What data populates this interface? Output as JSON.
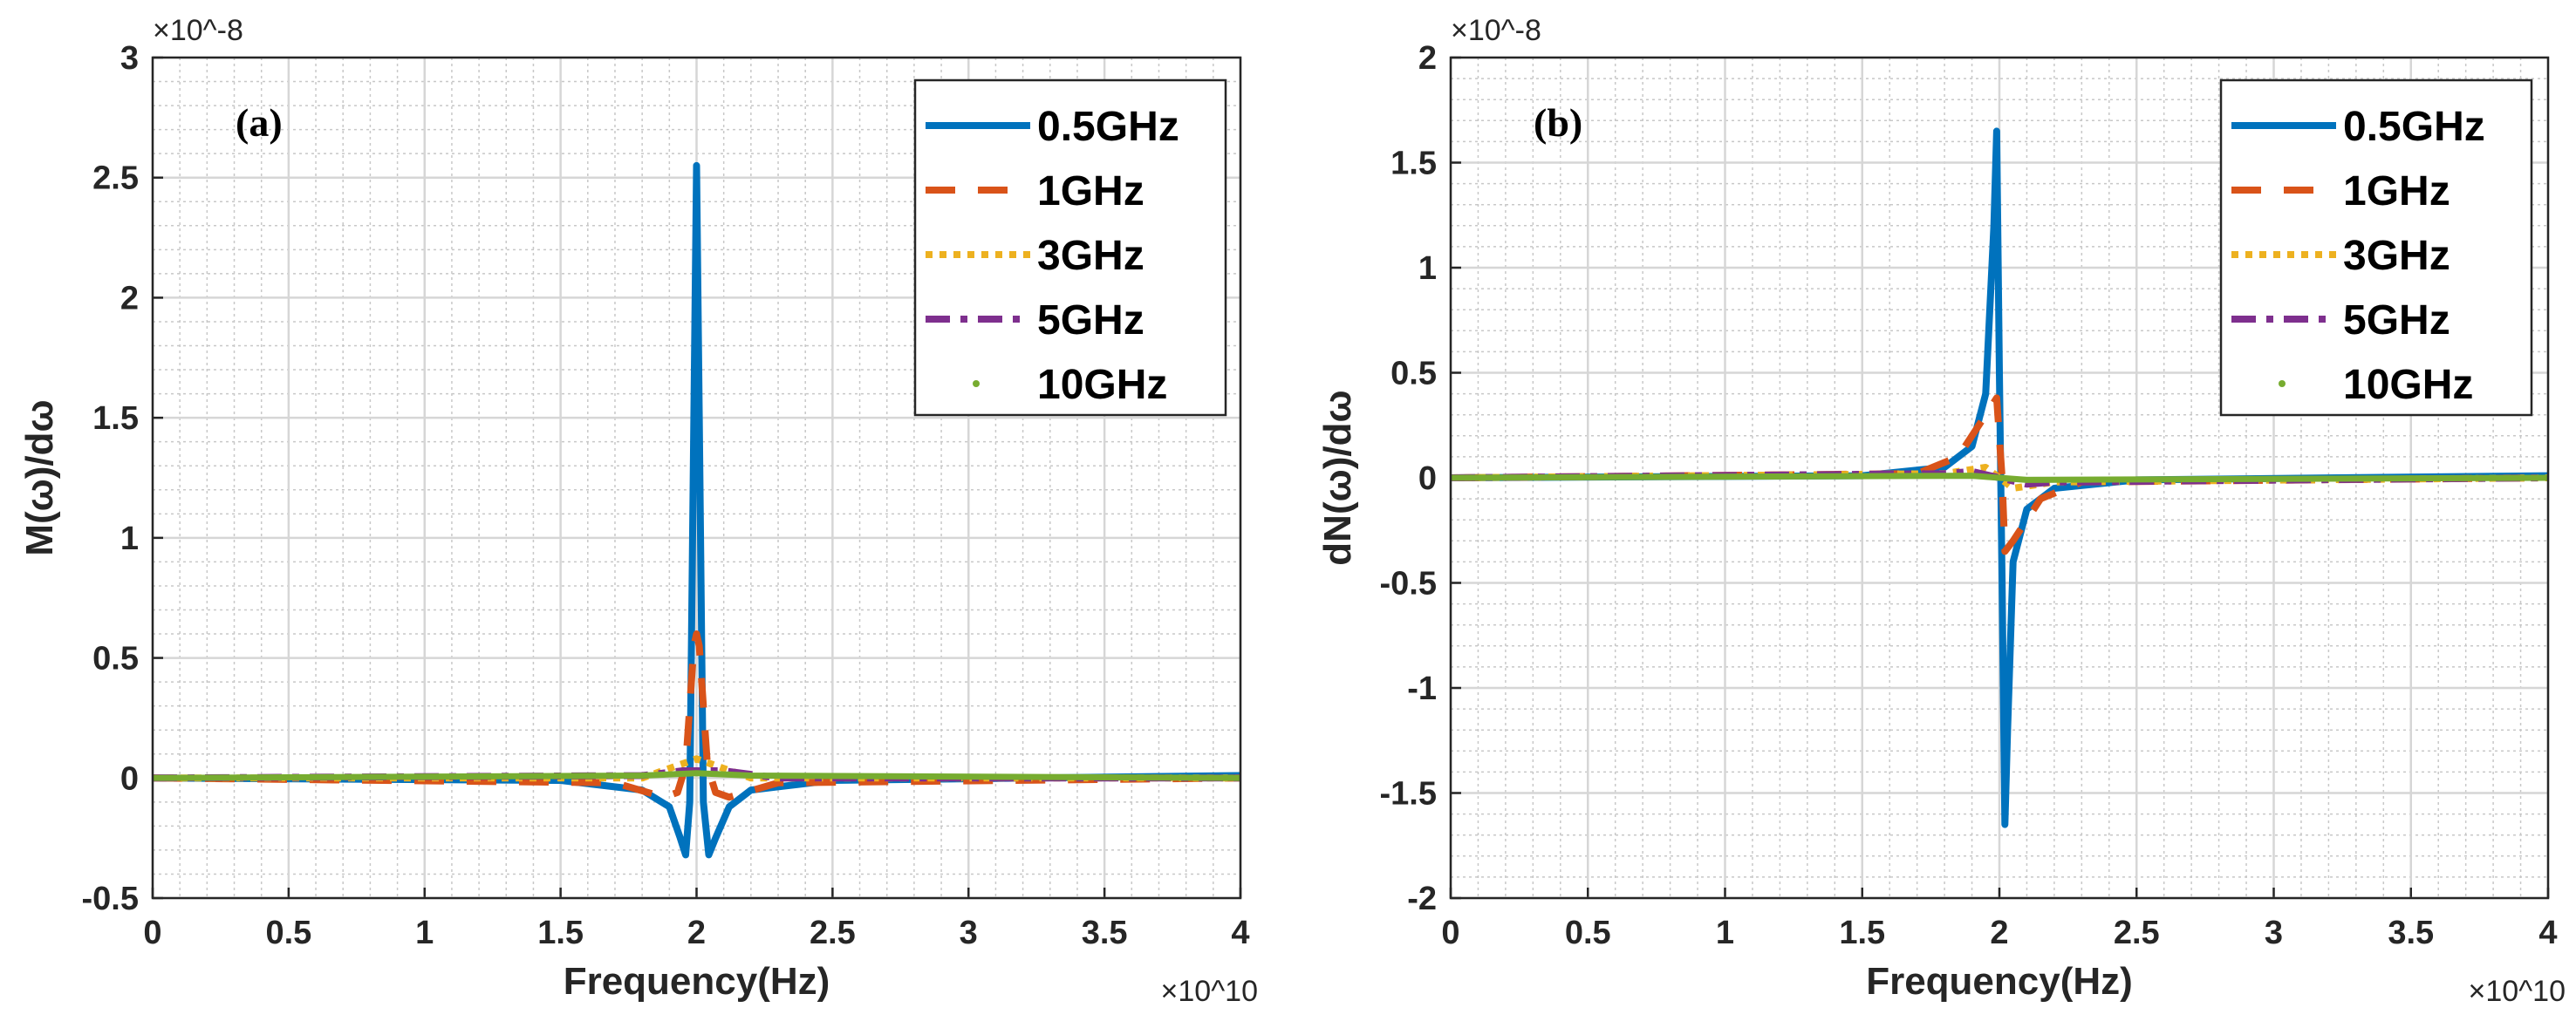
{
  "chart_data": [
    {
      "type": "line",
      "panel_label": "(a)",
      "xlabel": "Frequency(Hz)",
      "ylabel": "M(ω)/dω",
      "x_multiplier": "×10^10",
      "y_multiplier": "×10^-8",
      "xlim": [
        0,
        4
      ],
      "ylim": [
        -0.5,
        3
      ],
      "xticks": [
        0,
        0.5,
        1,
        1.5,
        2,
        2.5,
        3,
        3.5,
        4
      ],
      "xtick_labels": [
        "0",
        "0.5",
        "1",
        "1.5",
        "2",
        "2.5",
        "3",
        "3.5",
        "4"
      ],
      "yticks": [
        -0.5,
        0,
        0.5,
        1,
        1.5,
        2,
        2.5,
        3
      ],
      "ytick_labels": [
        "-0.5",
        "0",
        "0.5",
        "1",
        "1.5",
        "2",
        "2.5",
        "3"
      ],
      "grid": true,
      "minor_grid": true,
      "legend_position": "top-right",
      "series": [
        {
          "name": "0.5GHz",
          "color": "#0072BD",
          "style": "solid",
          "x": [
            0,
            1.5,
            1.8,
            1.9,
            1.94,
            1.96,
            1.975,
            1.99,
            2.0,
            2.01,
            2.025,
            2.045,
            2.07,
            2.12,
            2.2,
            2.5,
            4
          ],
          "y": [
            0,
            -0.01,
            -0.05,
            -0.12,
            -0.25,
            -0.32,
            -0.1,
            1.5,
            2.55,
            1.5,
            -0.1,
            -0.32,
            -0.25,
            -0.12,
            -0.05,
            -0.01,
            0.01
          ]
        },
        {
          "name": "1GHz",
          "color": "#D95319",
          "style": "dashed",
          "x": [
            0,
            1.7,
            1.88,
            1.93,
            1.96,
            1.99,
            2.0,
            2.01,
            2.04,
            2.07,
            2.12,
            2.3,
            4
          ],
          "y": [
            0,
            -0.02,
            -0.08,
            -0.06,
            0.05,
            0.55,
            0.6,
            0.55,
            0.05,
            -0.06,
            -0.08,
            -0.02,
            0
          ]
        },
        {
          "name": "3GHz",
          "color": "#EDB120",
          "style": "dotted",
          "x": [
            0,
            1.8,
            1.95,
            2.0,
            2.05,
            2.2,
            4
          ],
          "y": [
            0,
            0,
            0.06,
            0.08,
            0.06,
            0,
            0
          ]
        },
        {
          "name": "5GHz",
          "color": "#7E2F8E",
          "style": "dashdot",
          "x": [
            0,
            1.8,
            1.95,
            2.0,
            2.1,
            2.3,
            4
          ],
          "y": [
            0,
            0.01,
            0.03,
            0.03,
            0.03,
            0,
            0
          ]
        },
        {
          "name": "10GHz",
          "color": "#77AC30",
          "style": "points",
          "x": [
            0,
            1.8,
            2.0,
            2.2,
            4
          ],
          "y": [
            0,
            0.01,
            0.02,
            0.01,
            0
          ]
        }
      ]
    },
    {
      "type": "line",
      "panel_label": "(b)",
      "xlabel": "Frequency(Hz)",
      "ylabel": "dN(ω)/dω",
      "x_multiplier": "×10^10",
      "y_multiplier": "×10^-8",
      "xlim": [
        0,
        4
      ],
      "ylim": [
        -2,
        2
      ],
      "xticks": [
        0,
        0.5,
        1,
        1.5,
        2,
        2.5,
        3,
        3.5,
        4
      ],
      "xtick_labels": [
        "0",
        "0.5",
        "1",
        "1.5",
        "2",
        "2.5",
        "3",
        "3.5",
        "4"
      ],
      "yticks": [
        -2,
        -1.5,
        -1,
        -0.5,
        0,
        0.5,
        1,
        1.5,
        2
      ],
      "ytick_labels": [
        "-2",
        "-1.5",
        "-1",
        "-0.5",
        "0",
        "0.5",
        "1",
        "1.5",
        "2"
      ],
      "grid": true,
      "minor_grid": true,
      "legend_position": "top-right",
      "series": [
        {
          "name": "0.5GHz",
          "color": "#0072BD",
          "style": "solid",
          "x": [
            0,
            1.5,
            1.8,
            1.9,
            1.95,
            1.98,
            1.99,
            2.0,
            2.01,
            2.02,
            2.03,
            2.05,
            2.1,
            2.2,
            2.5,
            4
          ],
          "y": [
            0,
            0.01,
            0.05,
            0.15,
            0.4,
            1.2,
            1.65,
            0.5,
            -0.5,
            -1.65,
            -1.2,
            -0.4,
            -0.15,
            -0.05,
            -0.01,
            0.01
          ]
        },
        {
          "name": "1GHz",
          "color": "#D95319",
          "style": "dashed",
          "x": [
            0,
            1.7,
            1.85,
            1.95,
            1.99,
            2.01,
            2.02,
            2.05,
            2.15,
            2.3,
            4
          ],
          "y": [
            0,
            0.02,
            0.1,
            0.3,
            0.38,
            0,
            -0.35,
            -0.3,
            -0.1,
            -0.02,
            0
          ]
        },
        {
          "name": "3GHz",
          "color": "#EDB120",
          "style": "dotted",
          "x": [
            0,
            1.8,
            1.95,
            2.0,
            2.05,
            2.2,
            4
          ],
          "y": [
            0,
            0.02,
            0.05,
            0,
            -0.05,
            -0.02,
            0
          ]
        },
        {
          "name": "5GHz",
          "color": "#7E2F8E",
          "style": "dashdot",
          "x": [
            0,
            1.8,
            1.9,
            2.0,
            2.1,
            2.2,
            4
          ],
          "y": [
            0,
            0.02,
            0.03,
            0,
            -0.03,
            -0.02,
            0
          ]
        },
        {
          "name": "10GHz",
          "color": "#77AC30",
          "style": "points",
          "x": [
            0,
            1.9,
            2.0,
            2.1,
            4
          ],
          "y": [
            0,
            0.01,
            0,
            -0.01,
            0
          ]
        }
      ]
    }
  ]
}
